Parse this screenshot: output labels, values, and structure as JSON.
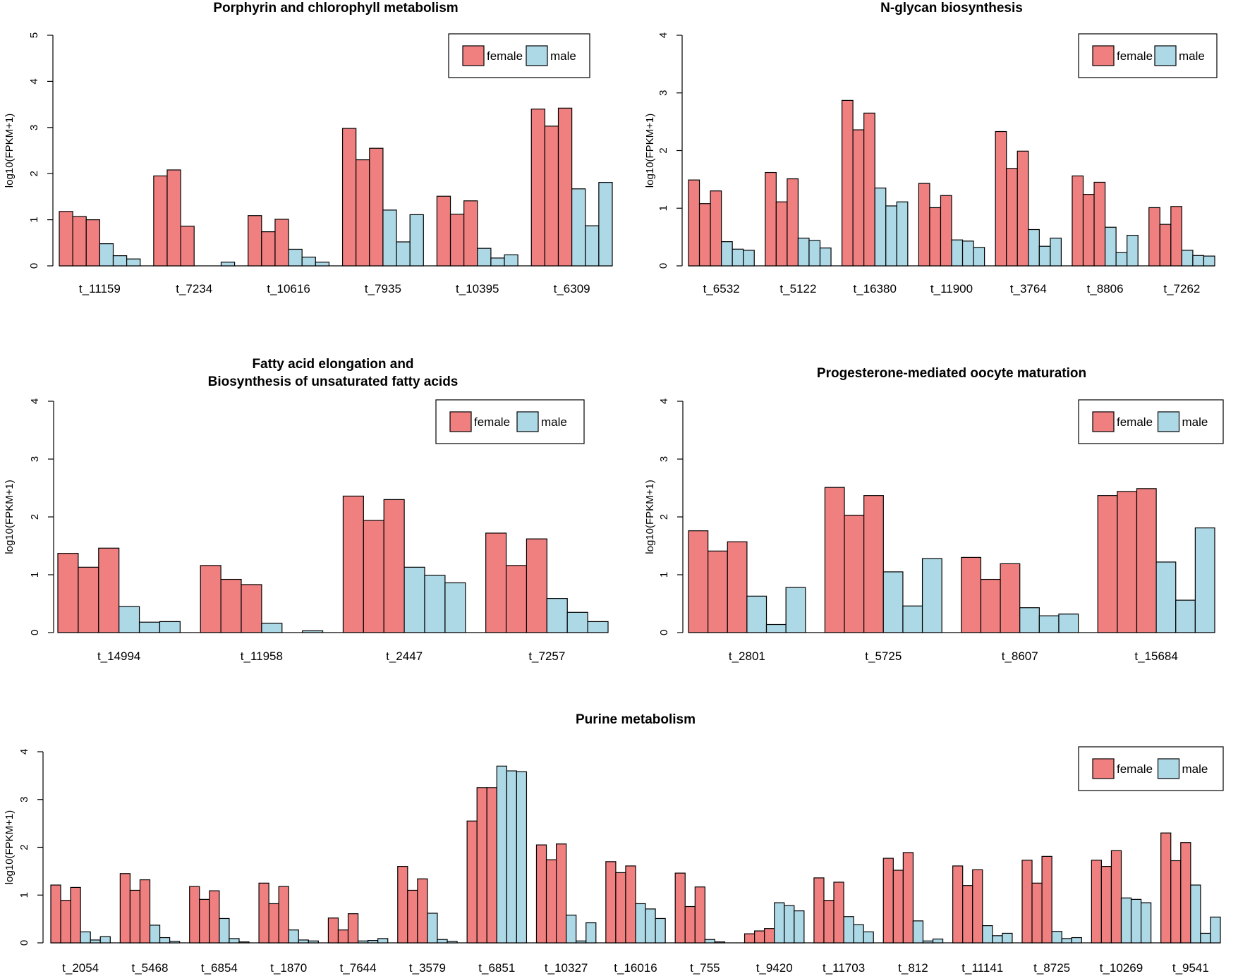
{
  "colors": {
    "female": "#F08080",
    "male": "#ADD8E6"
  },
  "chart_data": [
    {
      "type": "bar",
      "title": [
        "Porphyrin and chlorophyll metabolism"
      ],
      "ylabel": "log10(FPKM+1)",
      "ylim": [
        0,
        5
      ],
      "yticks": [
        0,
        1,
        2,
        3,
        4,
        5
      ],
      "legend": {
        "position": "top-right",
        "entries": [
          "female",
          "male"
        ]
      },
      "categories": [
        "t_11159",
        "t_7234",
        "t_10616",
        "t_7935",
        "t_10395",
        "t_6309"
      ],
      "series": [
        {
          "name": "female",
          "values": [
            [
              1.18,
              1.07,
              1.0
            ],
            [
              1.95,
              2.08,
              0.86
            ],
            [
              1.09,
              0.74,
              1.01
            ],
            [
              2.98,
              2.3,
              2.55
            ],
            [
              1.51,
              1.12,
              1.41
            ],
            [
              3.4,
              3.03,
              3.42
            ]
          ]
        },
        {
          "name": "male",
          "values": [
            [
              0.48,
              0.22,
              0.15
            ],
            [
              0.0,
              0.0,
              0.08
            ],
            [
              0.36,
              0.19,
              0.08
            ],
            [
              1.21,
              0.52,
              1.11
            ],
            [
              0.38,
              0.17,
              0.24
            ],
            [
              1.67,
              0.87,
              1.81
            ]
          ]
        }
      ]
    },
    {
      "type": "bar",
      "title": [
        "N-glycan biosynthesis"
      ],
      "ylabel": "log10(FPKM+1)",
      "ylim": [
        0,
        4
      ],
      "yticks": [
        0,
        1,
        2,
        3,
        4
      ],
      "legend": {
        "position": "top-right",
        "entries": [
          "female",
          "male"
        ]
      },
      "categories": [
        "t_6532",
        "t_5122",
        "t_16380",
        "t_11900",
        "t_3764",
        "t_8806",
        "t_7262"
      ],
      "series": [
        {
          "name": "female",
          "values": [
            [
              1.49,
              1.08,
              1.3
            ],
            [
              1.62,
              1.11,
              1.51
            ],
            [
              2.87,
              2.36,
              2.65
            ],
            [
              1.43,
              1.01,
              1.22
            ],
            [
              2.33,
              1.69,
              1.99
            ],
            [
              1.56,
              1.24,
              1.45
            ],
            [
              1.01,
              0.72,
              1.03
            ]
          ]
        },
        {
          "name": "male",
          "values": [
            [
              0.42,
              0.29,
              0.27
            ],
            [
              0.48,
              0.44,
              0.31
            ],
            [
              1.35,
              1.04,
              1.11
            ],
            [
              0.45,
              0.43,
              0.32
            ],
            [
              0.63,
              0.34,
              0.48
            ],
            [
              0.67,
              0.23,
              0.53
            ],
            [
              0.27,
              0.18,
              0.17
            ]
          ]
        }
      ]
    },
    {
      "type": "bar",
      "title": [
        "Fatty acid elongation and",
        "Biosynthesis of unsaturated fatty acids"
      ],
      "ylabel": "log10(FPKM+1)",
      "ylim": [
        0,
        4
      ],
      "yticks": [
        0,
        1,
        2,
        3,
        4
      ],
      "legend": {
        "position": "top-right",
        "entries": [
          "female",
          "male"
        ]
      },
      "categories": [
        "t_14994",
        "t_11958",
        "t_2447",
        "t_7257"
      ],
      "series": [
        {
          "name": "female",
          "values": [
            [
              1.37,
              1.13,
              1.46
            ],
            [
              1.16,
              0.92,
              0.83
            ],
            [
              2.36,
              1.94,
              2.3
            ],
            [
              1.72,
              1.16,
              1.62
            ]
          ]
        },
        {
          "name": "male",
          "values": [
            [
              0.45,
              0.18,
              0.19
            ],
            [
              0.16,
              0.0,
              0.03
            ],
            [
              1.13,
              0.99,
              0.86
            ],
            [
              0.59,
              0.35,
              0.19
            ]
          ]
        }
      ]
    },
    {
      "type": "bar",
      "title": [
        "Progesterone-mediated oocyte maturation"
      ],
      "ylabel": "log10(FPKM+1)",
      "ylim": [
        0,
        4
      ],
      "yticks": [
        0,
        1,
        2,
        3,
        4
      ],
      "legend": {
        "position": "top-right",
        "entries": [
          "female",
          "male"
        ]
      },
      "categories": [
        "t_2801",
        "t_5725",
        "t_8607",
        "t_15684"
      ],
      "series": [
        {
          "name": "female",
          "values": [
            [
              1.76,
              1.41,
              1.57
            ],
            [
              2.51,
              2.03,
              2.37
            ],
            [
              1.3,
              0.92,
              1.19
            ],
            [
              2.37,
              2.44,
              2.49
            ]
          ]
        },
        {
          "name": "male",
          "values": [
            [
              0.63,
              0.14,
              0.78
            ],
            [
              1.05,
              0.46,
              1.28
            ],
            [
              0.43,
              0.29,
              0.32
            ],
            [
              1.22,
              0.56,
              1.81
            ]
          ]
        }
      ]
    },
    {
      "type": "bar",
      "title": [
        "Purine metabolism"
      ],
      "ylabel": "log10(FPKM+1)",
      "ylim": [
        0,
        4
      ],
      "yticks": [
        0,
        1,
        2,
        3,
        4
      ],
      "legend": {
        "position": "top-right",
        "entries": [
          "female",
          "male"
        ]
      },
      "categories": [
        "t_2054",
        "t_5468",
        "t_6854",
        "t_1870",
        "t_7644",
        "t_3579",
        "t_6851",
        "t_10327",
        "t_16016",
        "t_755",
        "t_9420",
        "t_11703",
        "t_812",
        "t_11141",
        "t_8725",
        "t_10269",
        "t_9541"
      ],
      "series": [
        {
          "name": "female",
          "values": [
            [
              1.21,
              0.89,
              1.16
            ],
            [
              1.45,
              1.1,
              1.32
            ],
            [
              1.18,
              0.91,
              1.09
            ],
            [
              1.25,
              0.82,
              1.18
            ],
            [
              0.52,
              0.27,
              0.61
            ],
            [
              1.6,
              1.1,
              1.34
            ],
            [
              2.55,
              3.25,
              3.25
            ],
            [
              2.05,
              1.74,
              2.07
            ],
            [
              1.7,
              1.47,
              1.61
            ],
            [
              1.46,
              0.76,
              1.17
            ],
            [
              0.19,
              0.25,
              0.3
            ],
            [
              1.36,
              0.89,
              1.27
            ],
            [
              1.77,
              1.52,
              1.89
            ],
            [
              1.61,
              1.2,
              1.53
            ],
            [
              1.73,
              1.25,
              1.81
            ],
            [
              1.73,
              1.6,
              1.93
            ],
            [
              2.3,
              1.72,
              2.1
            ]
          ]
        },
        {
          "name": "male",
          "values": [
            [
              0.23,
              0.06,
              0.13
            ],
            [
              0.37,
              0.11,
              0.03
            ],
            [
              0.51,
              0.09,
              0.02
            ],
            [
              0.27,
              0.06,
              0.04
            ],
            [
              0.04,
              0.05,
              0.09
            ],
            [
              0.62,
              0.07,
              0.03
            ],
            [
              3.7,
              3.6,
              3.58
            ],
            [
              0.58,
              0.04,
              0.42
            ],
            [
              0.82,
              0.71,
              0.51
            ],
            [
              0.07,
              0.02,
              0.0
            ],
            [
              0.84,
              0.78,
              0.67
            ],
            [
              0.55,
              0.38,
              0.23
            ],
            [
              0.46,
              0.04,
              0.08
            ],
            [
              0.36,
              0.15,
              0.2
            ],
            [
              0.24,
              0.09,
              0.11
            ],
            [
              0.94,
              0.91,
              0.84
            ],
            [
              1.21,
              0.2,
              0.54
            ]
          ]
        }
      ]
    }
  ]
}
